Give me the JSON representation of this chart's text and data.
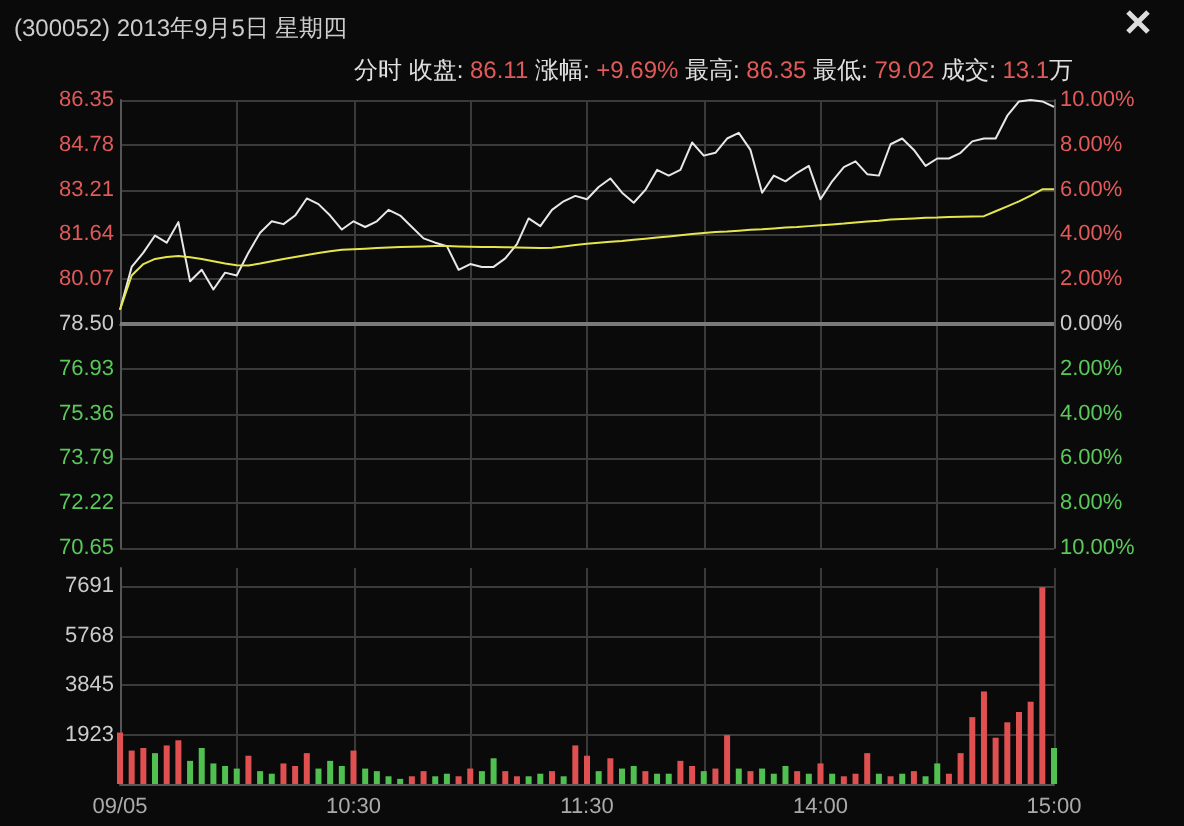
{
  "chart_data": [
    {
      "type": "line",
      "title": "(300052) 2013年9月5日 星期四",
      "subtitle": "分时 收盘: 86.11 涨幅: +9.69% 最高: 86.35 最低: 79.02 成交: 13.1万",
      "categories": [
        null,
        null,
        null,
        null,
        null,
        null,
        null,
        null,
        null,
        null,
        null,
        null,
        null,
        null,
        null,
        null,
        null,
        null,
        null,
        null,
        null,
        null,
        null,
        null,
        null,
        null,
        null,
        null,
        null,
        null,
        null,
        null,
        null,
        null,
        null,
        null,
        null,
        null,
        null,
        null,
        null,
        null,
        null,
        null,
        null,
        null,
        null,
        null,
        null,
        null,
        null,
        null,
        null,
        null,
        null,
        null,
        null,
        null,
        null,
        null,
        null,
        null,
        null,
        null,
        null,
        null,
        null,
        null,
        null,
        null,
        null,
        null,
        null,
        null,
        null,
        null,
        null,
        null,
        null,
        null,
        null
      ],
      "ylim": [
        70.65,
        86.35
      ],
      "yticks": [
        70.65,
        72.22,
        73.79,
        75.36,
        76.93,
        {
          "value": 78.5,
          "label": "78.50"
        },
        80.07,
        81.64,
        83.21,
        84.78,
        86.35
      ],
      "y2lim": [
        -10,
        10
      ],
      "y2ticks": [
        {
          "value": -10,
          "label": "10.00%"
        },
        {
          "value": -8,
          "label": "8.00%"
        },
        {
          "value": -6,
          "label": "6.00%"
        },
        {
          "value": -4,
          "label": "4.00%"
        },
        {
          "value": -2,
          "label": "2.00%"
        },
        {
          "value": 0,
          "label": "0.00%"
        },
        {
          "value": 2,
          "label": "2.00%"
        },
        {
          "value": 4,
          "label": "4.00%"
        },
        {
          "value": 6,
          "label": "6.00%"
        },
        {
          "value": 8,
          "label": "8.00%"
        },
        {
          "value": 10,
          "label": "10.00%"
        }
      ],
      "series": [
        {
          "color": "#e8e8e8",
          "values": [
            79.0,
            80.5,
            81.0,
            81.6,
            81.35,
            82.07,
            80.0,
            80.4,
            79.71,
            80.3,
            80.2,
            81.0,
            81.7,
            82.1,
            82.0,
            82.3,
            82.9,
            82.7,
            82.3,
            81.81,
            82.1,
            81.9,
            82.1,
            82.5,
            82.3,
            81.9,
            81.5,
            81.35,
            81.23,
            80.4,
            80.6,
            80.5,
            80.5,
            80.8,
            81.3,
            82.2,
            81.93,
            82.5,
            82.8,
            82.99,
            82.87,
            83.3,
            83.6,
            83.1,
            82.75,
            83.2,
            83.9,
            83.7,
            83.9,
            84.86,
            84.4,
            84.5,
            85.0,
            85.2,
            84.6,
            83.1,
            83.7,
            83.5,
            83.8,
            84.04,
            82.87,
            83.5,
            84.0,
            84.2,
            83.75,
            83.7,
            84.8,
            85.0,
            84.6,
            84.04,
            84.3,
            84.3,
            84.5,
            84.9,
            85.0,
            85.0,
            85.8,
            86.3,
            86.35,
            86.3,
            86.11
          ]
        },
        {
          "color": "#e6e64c",
          "values": [
            79.0,
            80.2,
            80.6,
            80.78,
            80.85,
            80.88,
            80.84,
            80.78,
            80.7,
            80.62,
            80.56,
            80.55,
            80.62,
            80.7,
            80.78,
            80.85,
            80.92,
            80.99,
            81.05,
            81.1,
            81.12,
            81.14,
            81.16,
            81.18,
            81.2,
            81.21,
            81.22,
            81.23,
            81.23,
            81.22,
            81.21,
            81.2,
            81.2,
            81.19,
            81.18,
            81.17,
            81.16,
            81.17,
            81.22,
            81.27,
            81.31,
            81.35,
            81.38,
            81.41,
            81.45,
            81.49,
            81.53,
            81.57,
            81.61,
            81.65,
            81.69,
            81.72,
            81.74,
            81.77,
            81.8,
            81.82,
            81.85,
            81.88,
            81.9,
            81.93,
            81.96,
            81.99,
            82.02,
            82.06,
            82.09,
            82.12,
            82.16,
            82.18,
            82.2,
            82.22,
            82.23,
            82.25,
            82.26,
            82.27,
            82.28,
            82.45,
            82.62,
            82.8,
            83.0,
            83.22,
            83.22
          ]
        }
      ],
      "ref_lines": [
        {
          "axis": "y",
          "value": 78.5,
          "color": "#7a7a7a"
        }
      ],
      "grid": true
    },
    {
      "type": "bar",
      "categories": [
        "09/05",
        null,
        null,
        null,
        null,
        null,
        null,
        null,
        null,
        null,
        null,
        null,
        null,
        null,
        null,
        null,
        null,
        null,
        null,
        null,
        "10:30",
        null,
        null,
        null,
        null,
        null,
        null,
        null,
        null,
        null,
        null,
        null,
        null,
        null,
        null,
        null,
        null,
        null,
        null,
        null,
        "11:30",
        null,
        null,
        null,
        null,
        null,
        null,
        null,
        null,
        null,
        null,
        null,
        null,
        null,
        null,
        null,
        null,
        null,
        null,
        null,
        "14:00",
        null,
        null,
        null,
        null,
        null,
        null,
        null,
        null,
        null,
        null,
        null,
        null,
        null,
        null,
        null,
        null,
        null,
        null,
        null,
        "15:00"
      ],
      "ylim": [
        0,
        8400
      ],
      "yticks": [
        1923,
        3845,
        5768,
        7691
      ],
      "values": [
        2000,
        1300,
        1400,
        1200,
        1500,
        1700,
        900,
        1400,
        800,
        700,
        600,
        1100,
        500,
        400,
        800,
        700,
        1200,
        600,
        900,
        700,
        1300,
        600,
        500,
        300,
        200,
        300,
        500,
        300,
        400,
        300,
        600,
        500,
        1000,
        500,
        300,
        300,
        400,
        500,
        300,
        1500,
        1100,
        500,
        1000,
        600,
        700,
        500,
        400,
        400,
        900,
        700,
        500,
        600,
        1900,
        600,
        500,
        600,
        400,
        700,
        500,
        400,
        800,
        400,
        300,
        400,
        1200,
        400,
        300,
        400,
        500,
        300,
        800,
        400,
        1200,
        2600,
        3600,
        1800,
        2400,
        2800,
        3200,
        7650,
        1400
      ],
      "colors": [
        "#e05050",
        "#e05050",
        "#e05050",
        "#50c050",
        "#e05050",
        "#e05050",
        "#50c050",
        "#50c050",
        "#50c050",
        "#50c050",
        "#50c050",
        "#e05050",
        "#50c050",
        "#50c050",
        "#e05050",
        "#e05050",
        "#e05050",
        "#50c050",
        "#50c050",
        "#50c050",
        "#e05050",
        "#50c050",
        "#50c050",
        "#50c050",
        "#50c050",
        "#e05050",
        "#e05050",
        "#50c050",
        "#50c050",
        "#e05050",
        "#e05050",
        "#50c050",
        "#50c050",
        "#e05050",
        "#e05050",
        "#50c050",
        "#50c050",
        "#e05050",
        "#50c050",
        "#e05050",
        "#e05050",
        "#50c050",
        "#e05050",
        "#50c050",
        "#50c050",
        "#e05050",
        "#50c050",
        "#50c050",
        "#e05050",
        "#e05050",
        "#50c050",
        "#e05050",
        "#e05050",
        "#50c050",
        "#e05050",
        "#50c050",
        "#50c050",
        "#50c050",
        "#e05050",
        "#50c050",
        "#e05050",
        "#50c050",
        "#e05050",
        "#e05050",
        "#e05050",
        "#50c050",
        "#e05050",
        "#50c050",
        "#e05050",
        "#50c050",
        "#50c050",
        "#e05050",
        "#e05050",
        "#e05050",
        "#e05050",
        "#e05050",
        "#e05050",
        "#e05050",
        "#e05050",
        "#e05050",
        "#50c050"
      ],
      "grid": true
    }
  ]
}
